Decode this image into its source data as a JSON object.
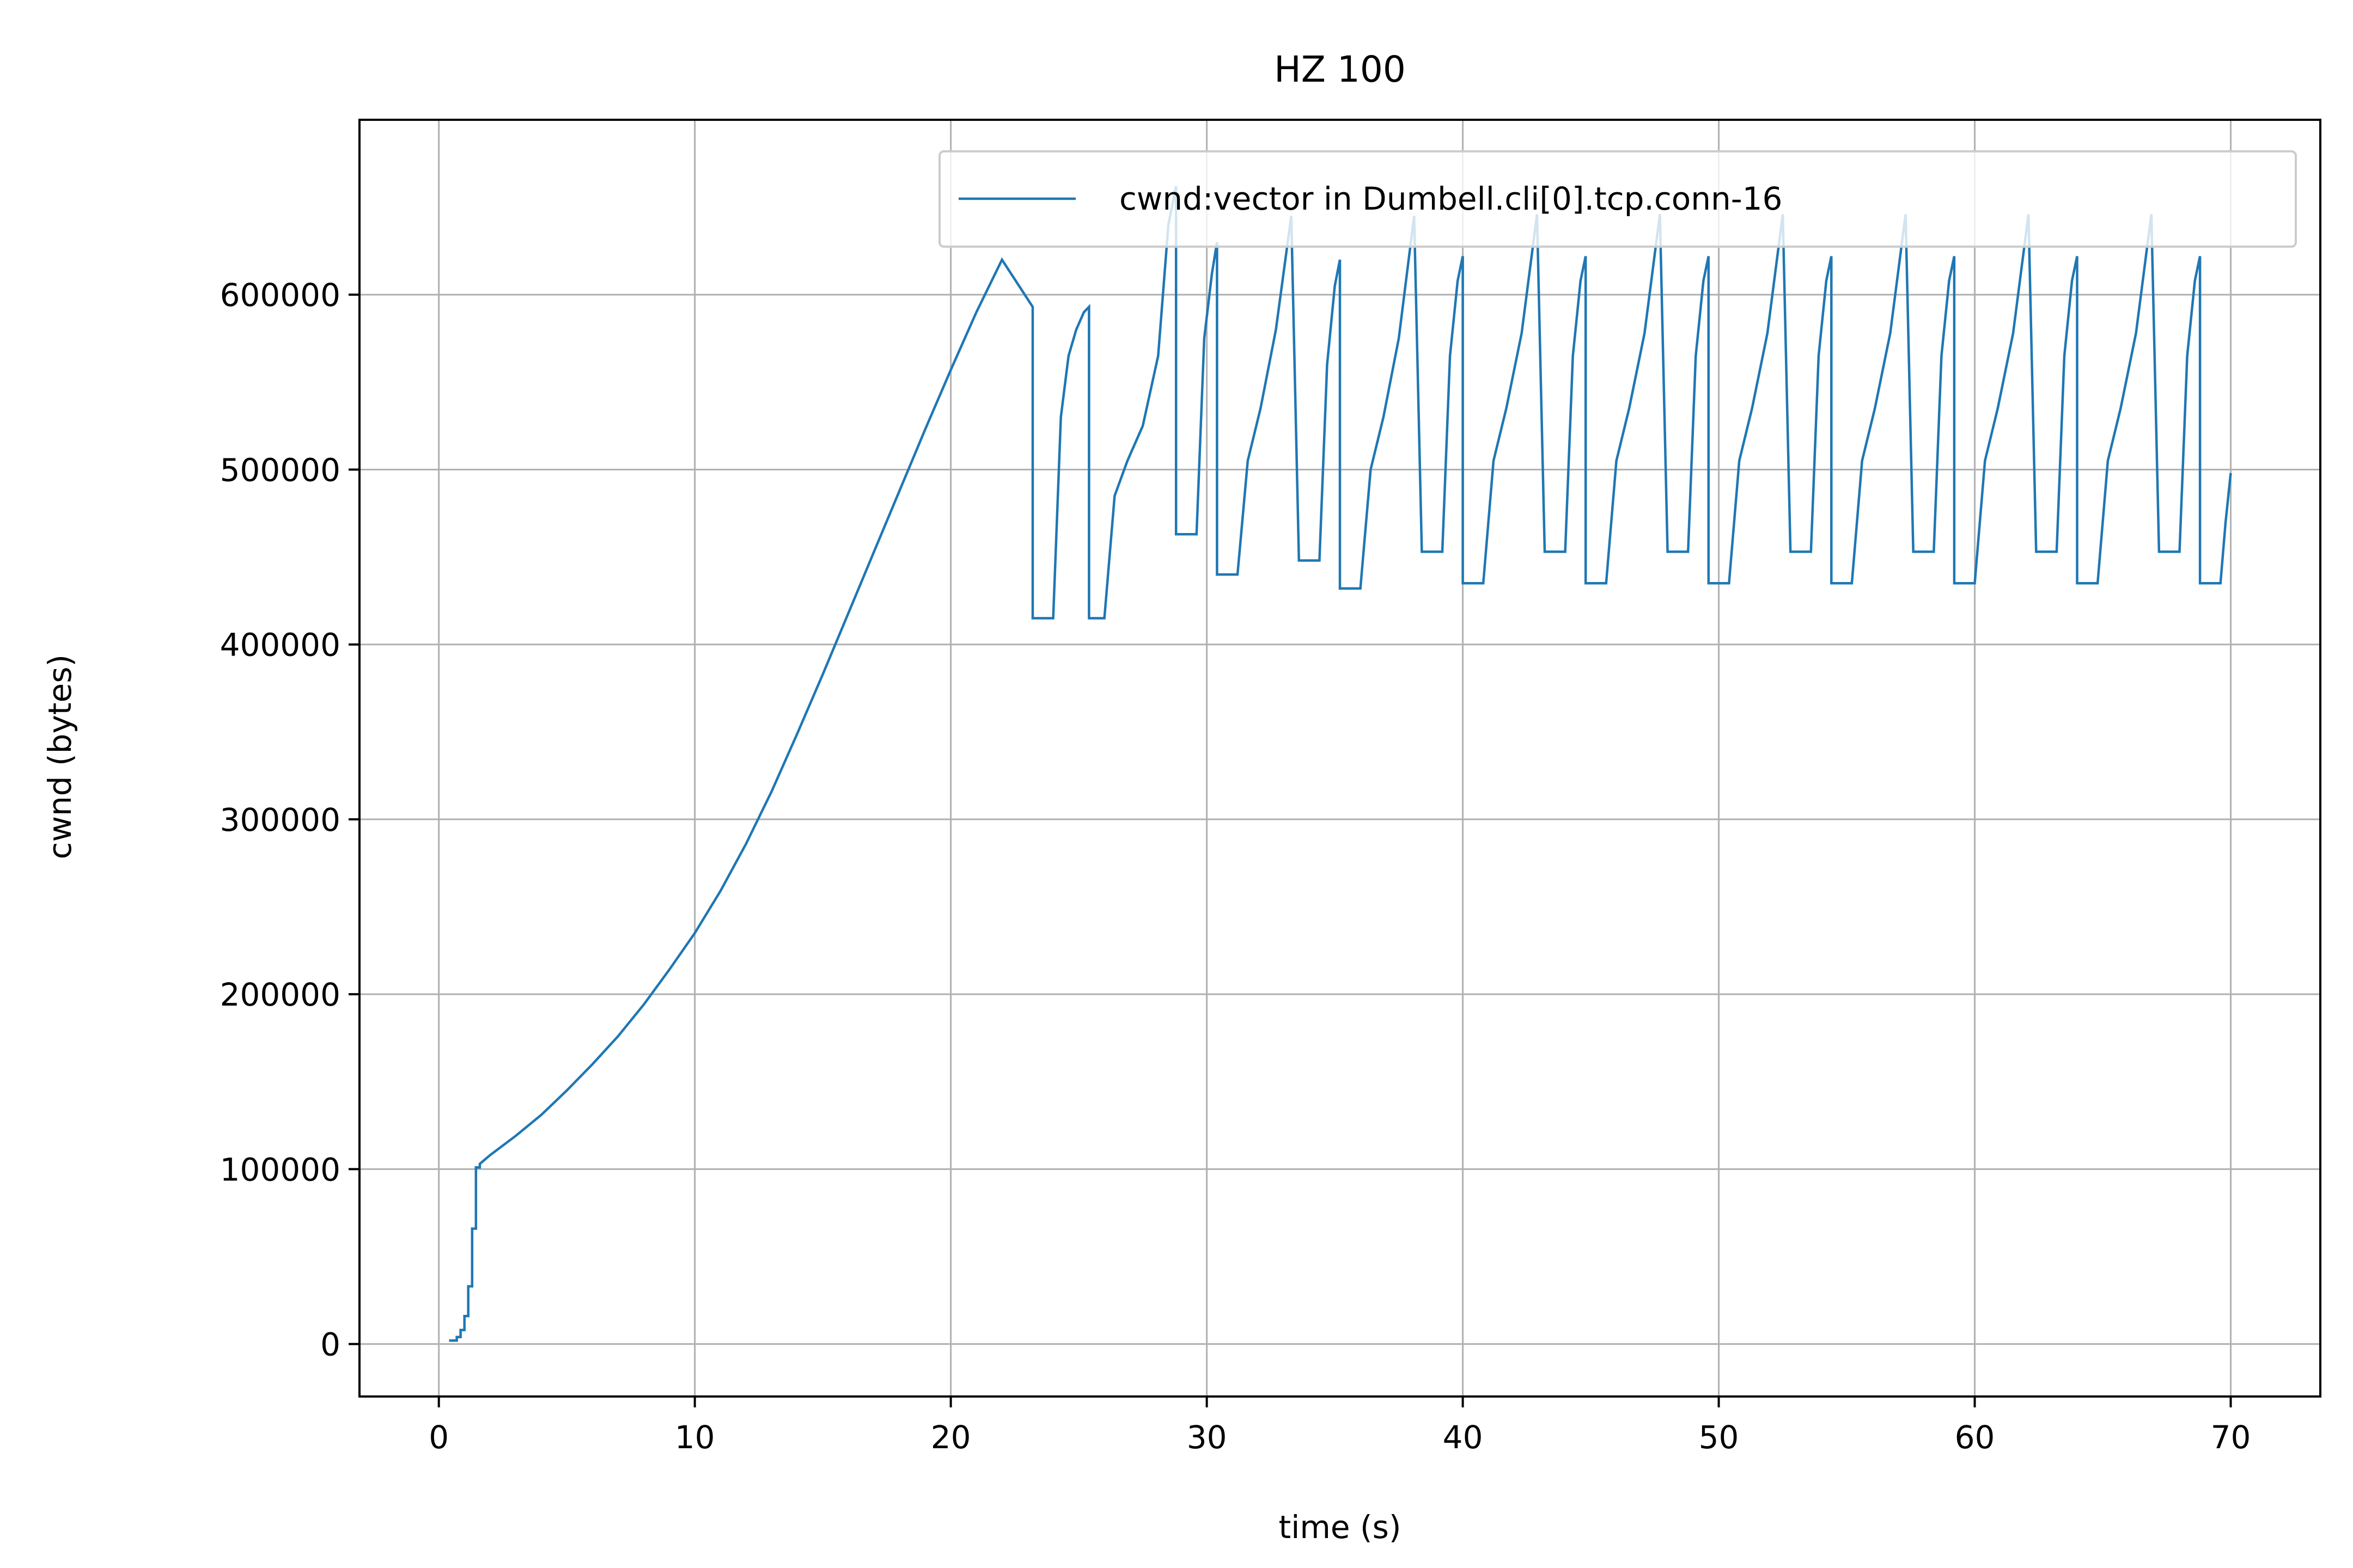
{
  "chart_data": {
    "type": "line",
    "title": "HZ 100",
    "xlabel": "time (s)",
    "ylabel": "cwnd (bytes)",
    "xlim": [
      -3.1,
      73.5
    ],
    "ylim": [
      -30000,
      700000
    ],
    "xticks": [
      0,
      10,
      20,
      30,
      40,
      50,
      60,
      70
    ],
    "xtick_labels": [
      "0",
      "10",
      "20",
      "30",
      "40",
      "50",
      "60",
      "70"
    ],
    "yticks": [
      0,
      100000,
      200000,
      300000,
      400000,
      500000,
      600000
    ],
    "ytick_labels": [
      "0",
      "100000",
      "200000",
      "300000",
      "400000",
      "500000",
      "600000"
    ],
    "grid": true,
    "legend_position": "upper right",
    "series": [
      {
        "name": "cwnd:vector in Dumbell.cli[0].tcp.conn-16",
        "color": "#1f77b4",
        "x": [
          0.4,
          0.7,
          0.7,
          0.85,
          0.85,
          1.0,
          1.0,
          1.15,
          1.15,
          1.3,
          1.3,
          1.45,
          1.45,
          1.6,
          1.6,
          2.0,
          3.0,
          4.0,
          5.0,
          6.0,
          7.0,
          8.0,
          9.0,
          10.0,
          11.0,
          12.0,
          13.0,
          14.0,
          15.0,
          16.0,
          17.0,
          18.0,
          19.0,
          20.0,
          21.0,
          22.0,
          23.2,
          23.2,
          24.0,
          24.0,
          24.3,
          24.6,
          24.9,
          25.2,
          25.4,
          25.4,
          26.0,
          26.0,
          26.4,
          26.9,
          27.5,
          28.1,
          28.5,
          28.8,
          28.8,
          29.6,
          29.6,
          29.9,
          30.2,
          30.4,
          30.4,
          31.2,
          31.2,
          31.6,
          32.1,
          32.7,
          33.3,
          33.6,
          33.6,
          34.4,
          34.4,
          34.7,
          35.0,
          35.2,
          35.2,
          36.0,
          36.0,
          36.4,
          36.9,
          37.5,
          38.1,
          38.4,
          38.4,
          39.2,
          39.2,
          39.5,
          39.8,
          40.0,
          40.0,
          40.8,
          40.8,
          41.2,
          41.7,
          42.3,
          42.9,
          43.2,
          43.2,
          44.0,
          44.0,
          44.3,
          44.6,
          44.8,
          44.8,
          45.6,
          45.6,
          46.0,
          46.5,
          47.1,
          47.7,
          48.0,
          48.0,
          48.8,
          48.8,
          49.1,
          49.4,
          49.6,
          49.6,
          50.4,
          50.4,
          50.8,
          51.3,
          51.9,
          52.5,
          52.8,
          52.8,
          53.6,
          53.6,
          53.9,
          54.2,
          54.4,
          54.4,
          55.2,
          55.2,
          55.6,
          56.1,
          56.7,
          57.3,
          57.6,
          57.6,
          58.4,
          58.4,
          58.7,
          59.0,
          59.2,
          59.2,
          60.0,
          60.0,
          60.4,
          60.9,
          61.5,
          62.1,
          62.4,
          62.4,
          63.2,
          63.2,
          63.5,
          63.8,
          64.0,
          64.0,
          64.8,
          64.8,
          65.2,
          65.7,
          66.3,
          66.9,
          67.2,
          67.2,
          68.0,
          68.0,
          68.3,
          68.6,
          68.8,
          68.8,
          69.6,
          69.6,
          69.8,
          70.0
        ],
        "y": [
          2000,
          2000,
          4000,
          4000,
          8000,
          8000,
          16000,
          16000,
          33000,
          33000,
          66000,
          66000,
          101000,
          101000,
          103000,
          108000,
          119000,
          131000,
          145000,
          160000,
          176000,
          194000,
          214000,
          235000,
          259000,
          286000,
          316000,
          349000,
          383000,
          418000,
          453000,
          488000,
          523000,
          557000,
          590000,
          620000,
          593000,
          415000,
          415000,
          415000,
          530000,
          565000,
          580000,
          590000,
          593000,
          415000,
          415000,
          415000,
          485000,
          505000,
          525000,
          565000,
          640000,
          662000,
          463000,
          463000,
          463000,
          575000,
          612000,
          630000,
          440000,
          440000,
          440000,
          505000,
          535000,
          580000,
          645000,
          448000,
          448000,
          448000,
          448000,
          560000,
          605000,
          620000,
          432000,
          432000,
          432000,
          500000,
          530000,
          575000,
          645000,
          453000,
          453000,
          453000,
          453000,
          565000,
          608000,
          622000,
          435000,
          435000,
          435000,
          505000,
          535000,
          578000,
          646000,
          453000,
          453000,
          453000,
          453000,
          565000,
          608000,
          622000,
          435000,
          435000,
          435000,
          505000,
          535000,
          578000,
          646000,
          453000,
          453000,
          453000,
          453000,
          565000,
          608000,
          622000,
          435000,
          435000,
          435000,
          505000,
          535000,
          578000,
          646000,
          453000,
          453000,
          453000,
          453000,
          565000,
          608000,
          622000,
          435000,
          435000,
          435000,
          505000,
          535000,
          578000,
          646000,
          453000,
          453000,
          453000,
          453000,
          565000,
          608000,
          622000,
          435000,
          435000,
          435000,
          505000,
          535000,
          578000,
          646000,
          453000,
          453000,
          453000,
          453000,
          565000,
          608000,
          622000,
          435000,
          435000,
          435000,
          505000,
          535000,
          578000,
          646000,
          453000,
          453000,
          453000,
          453000,
          565000,
          608000,
          622000,
          435000,
          435000,
          435000,
          470000,
          498000
        ]
      }
    ]
  }
}
